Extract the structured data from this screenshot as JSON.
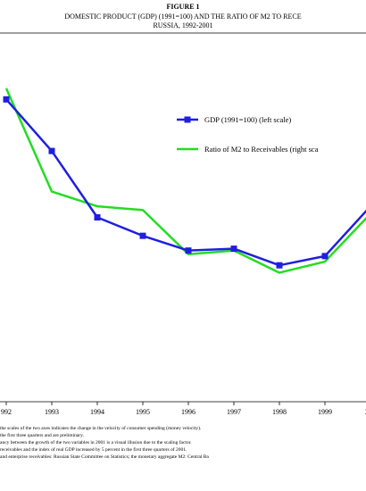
{
  "header": {
    "figure_label": "FIGURE 1",
    "title_line1": "DOMESTIC PRODUCT (GDP) (1991=100) AND THE RATIO OF M2 TO RECE",
    "title_line2": "RUSSIA, 1992-2001"
  },
  "colors": {
    "gdp": "#1f1fe0",
    "ratio": "#22dd22"
  },
  "chart_data": {
    "type": "line",
    "title": "DOMESTIC PRODUCT (GDP) (1991=100) AND THE RATIO OF M2 TO RECE RUSSIA, 1992-2001",
    "x": [
      "1992",
      "1993",
      "1994",
      "1995",
      "1996",
      "1997",
      "1998",
      "1999",
      "2000"
    ],
    "tick_labels": [
      "992",
      "1993",
      "1994",
      "1995",
      "1996",
      "1997",
      "1998",
      "1999",
      "200"
    ],
    "series": [
      {
        "name": "GDP (1991=100) (left scale)",
        "marker": "square",
        "values": [
          82,
          68,
          50,
          45,
          41,
          41.5,
          37,
          39.5,
          53
        ]
      },
      {
        "name": "Ratio of M2 to Receivables (right sca",
        "marker": "none",
        "values": [
          85,
          57,
          53,
          52,
          40,
          41,
          35,
          38,
          51
        ]
      }
    ],
    "ylim": [
      0,
      100
    ],
    "legend_position": "top-right",
    "grid": false
  },
  "notes": [
    "the scales of the two axes indicates the change in the velocity of consumer spending (money velocity).",
    "the first three quarters and are preliminary.",
    "ancy between the growth of the two variables in 2001 is a visual illusion due to the scaling factor.",
    "receivables and the index of real GDP increased by 5 percent in the first three quarters of 2001.",
    "and enterprise receivables: Russian State Committee on Statistics; the monetary aggregate M2: Central Ba"
  ]
}
